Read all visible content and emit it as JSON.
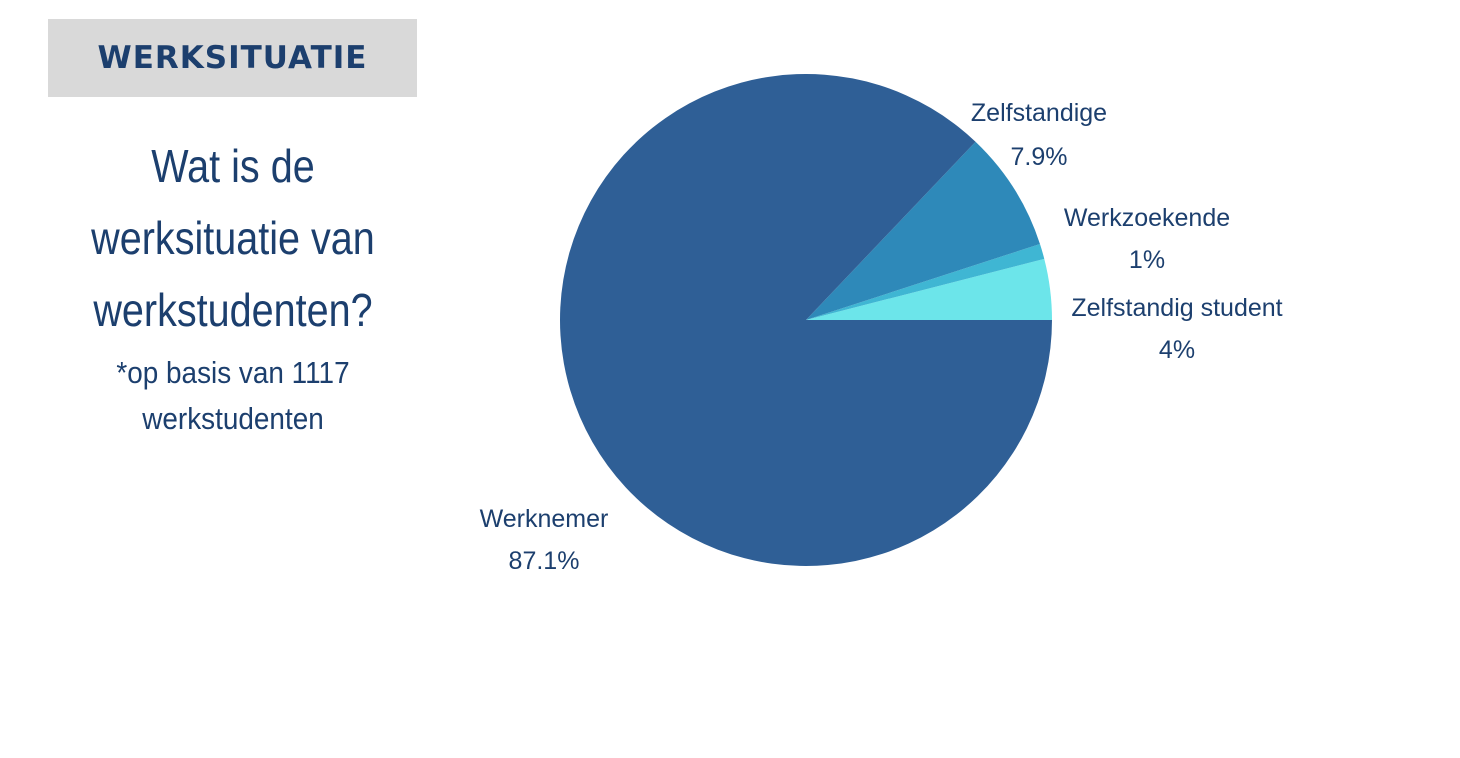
{
  "tag": {
    "label": "WERKSITUATIE"
  },
  "question": {
    "title_lines": [
      "Wat is de",
      "werksituatie van",
      "werkstudenten?"
    ],
    "note_lines": [
      "*op basis van 1117",
      "werkstudenten"
    ]
  },
  "colors": {
    "tag_background": "#d9d9d9",
    "text": "#1c3f6e"
  },
  "chart_data": {
    "type": "pie",
    "start_angle_deg": 0,
    "direction": "counterclockwise",
    "slices": [
      {
        "label": "Zelfstandig student",
        "value": 4,
        "value_label": "4%",
        "color": "#6ce5ea"
      },
      {
        "label": "Werkzoekende",
        "value": 1,
        "value_label": "1%",
        "color": "#3fb6d3"
      },
      {
        "label": "Zelfstandige",
        "value": 7.9,
        "value_label": "7.9%",
        "color": "#2e89b9"
      },
      {
        "label": "Werknemer",
        "value": 87.1,
        "value_label": "87.1%",
        "color": "#2f5f96"
      }
    ]
  }
}
